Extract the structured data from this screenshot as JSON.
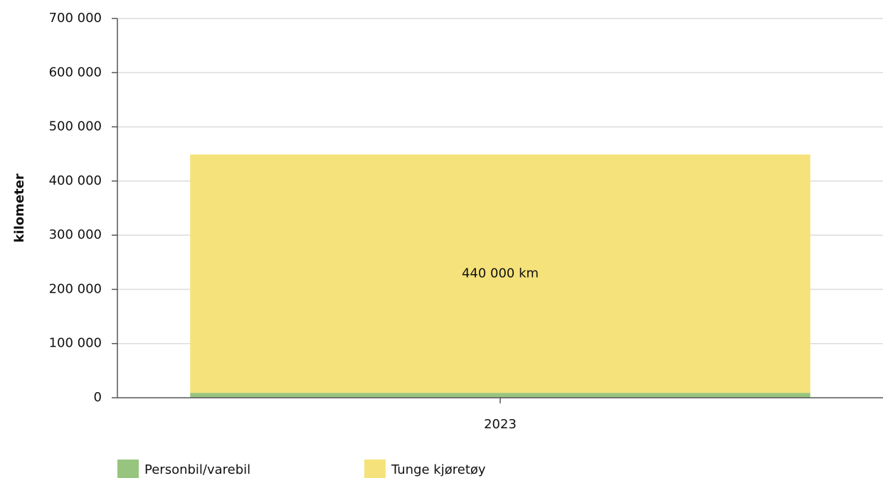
{
  "chart_data": {
    "type": "bar",
    "stacked": true,
    "y_label": "kilometer",
    "categories": [
      "2023"
    ],
    "series": [
      {
        "name": "Personbil/varebil",
        "color": "#97c47e",
        "values": [
          9000
        ]
      },
      {
        "name": "Tunge kjøretøy",
        "color": "#f5e27a",
        "values": [
          440000
        ],
        "value_labels": [
          "440 000 km"
        ]
      }
    ],
    "ylim": [
      0,
      700000
    ],
    "yticks": [
      0,
      {
        "value": 100000,
        "label": "100 000"
      },
      {
        "value": 200000,
        "label": "200 000"
      },
      {
        "value": 300000,
        "label": "300 000"
      },
      {
        "value": 400000,
        "label": "400 000"
      },
      {
        "value": 500000,
        "label": "500 000"
      },
      {
        "value": 600000,
        "label": "600 000"
      },
      {
        "value": 700000,
        "label": "700 000"
      }
    ],
    "grid": true
  }
}
